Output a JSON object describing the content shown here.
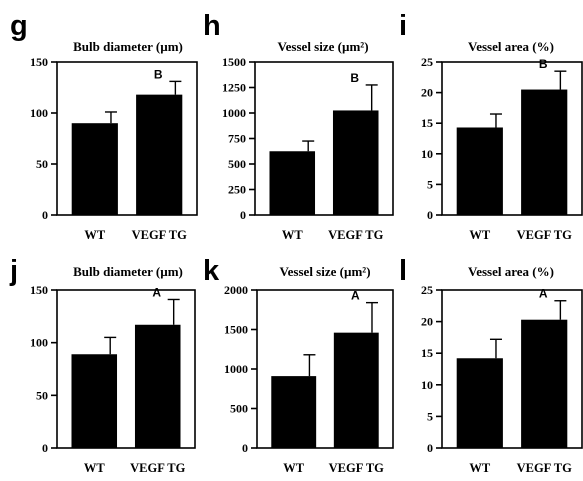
{
  "chart_data": [
    {
      "panel": "g",
      "type": "bar",
      "title": "Bulb diameter (µm)",
      "categories": [
        "WT",
        "VEGF TG"
      ],
      "values": [
        90,
        118
      ],
      "errors": [
        11,
        13
      ],
      "significance": [
        "",
        "B"
      ],
      "ylim": [
        0,
        150
      ],
      "yticks": [
        0,
        50,
        100,
        150
      ],
      "ytick_labels": [
        "0",
        "50",
        "100",
        "150"
      ],
      "color": "#000000"
    },
    {
      "panel": "h",
      "type": "bar",
      "title": "Vessel size (µm²)",
      "categories": [
        "WT",
        "VEGF TG"
      ],
      "values": [
        625,
        1025
      ],
      "errors": [
        100,
        250
      ],
      "significance": [
        "",
        "B"
      ],
      "ylim": [
        0,
        1500
      ],
      "yticks": [
        0,
        250,
        500,
        750,
        1000,
        1250,
        1500
      ],
      "ytick_labels": [
        "0",
        "250",
        "500",
        "750",
        "1000",
        "1250",
        "1500"
      ],
      "color": "#000000"
    },
    {
      "panel": "i",
      "type": "bar",
      "title": "Vessel area (%)",
      "categories": [
        "WT",
        "VEGF TG"
      ],
      "values": [
        14.3,
        20.5
      ],
      "errors": [
        2.2,
        3.0
      ],
      "significance": [
        "",
        "B"
      ],
      "ylim": [
        0,
        25
      ],
      "yticks": [
        0,
        5,
        10,
        15,
        20,
        25
      ],
      "ytick_labels": [
        "0",
        "5",
        "10",
        "15",
        "20",
        "25"
      ],
      "color": "#000000"
    },
    {
      "panel": "j",
      "type": "bar",
      "title": "Bulb diameter (µm)",
      "categories": [
        "WT",
        "VEGF TG"
      ],
      "values": [
        89,
        117
      ],
      "errors": [
        16,
        24
      ],
      "significance": [
        "",
        "A"
      ],
      "ylim": [
        0,
        150
      ],
      "yticks": [
        0,
        50,
        100,
        150
      ],
      "ytick_labels": [
        "0",
        "50",
        "100",
        "150"
      ],
      "color": "#000000"
    },
    {
      "panel": "k",
      "type": "bar",
      "title": "Vessel size (µm²)",
      "categories": [
        "WT",
        "VEGF TG"
      ],
      "values": [
        910,
        1460
      ],
      "errors": [
        270,
        380
      ],
      "significance": [
        "",
        "A"
      ],
      "ylim": [
        0,
        2000
      ],
      "yticks": [
        0,
        500,
        1000,
        1500,
        2000
      ],
      "ytick_labels": [
        "0",
        "500",
        "1000",
        "1500",
        "2000"
      ],
      "color": "#000000"
    },
    {
      "panel": "l",
      "type": "bar",
      "title": "Vessel area (%)",
      "categories": [
        "WT",
        "VEGF TG"
      ],
      "values": [
        14.2,
        20.3
      ],
      "errors": [
        3.0,
        3.0
      ],
      "significance": [
        "",
        "A"
      ],
      "ylim": [
        0,
        25
      ],
      "yticks": [
        0,
        5,
        10,
        15,
        20,
        25
      ],
      "ytick_labels": [
        "0",
        "5",
        "10",
        "15",
        "20",
        "25"
      ],
      "color": "#000000"
    }
  ]
}
